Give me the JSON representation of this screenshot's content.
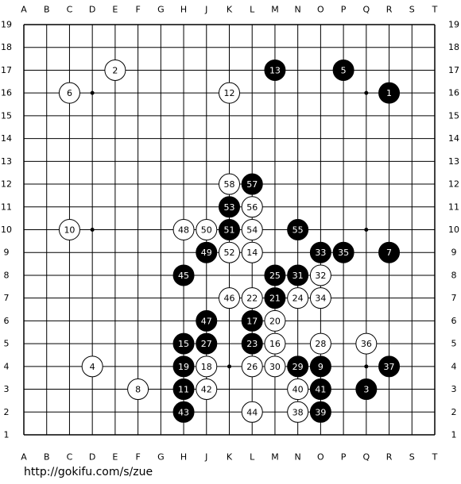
{
  "board": {
    "columns": [
      "A",
      "B",
      "C",
      "D",
      "E",
      "F",
      "G",
      "H",
      "J",
      "K",
      "L",
      "M",
      "N",
      "O",
      "P",
      "Q",
      "R",
      "S",
      "T"
    ],
    "rows": [
      19,
      18,
      17,
      16,
      15,
      14,
      13,
      12,
      11,
      10,
      9,
      8,
      7,
      6,
      5,
      4,
      3,
      2,
      1
    ],
    "stones": [
      {
        "move": 1,
        "color": "black",
        "point": "R16"
      },
      {
        "move": 2,
        "color": "white",
        "point": "E17"
      },
      {
        "move": 3,
        "color": "black",
        "point": "Q3"
      },
      {
        "move": 4,
        "color": "white",
        "point": "D4"
      },
      {
        "move": 5,
        "color": "black",
        "point": "P17"
      },
      {
        "move": 6,
        "color": "white",
        "point": "C16"
      },
      {
        "move": 7,
        "color": "black",
        "point": "R9"
      },
      {
        "move": 8,
        "color": "white",
        "point": "F3"
      },
      {
        "move": 9,
        "color": "black",
        "point": "O4"
      },
      {
        "move": 10,
        "color": "white",
        "point": "C10"
      },
      {
        "move": 11,
        "color": "black",
        "point": "H3"
      },
      {
        "move": 12,
        "color": "white",
        "point": "K16"
      },
      {
        "move": 13,
        "color": "black",
        "point": "M17"
      },
      {
        "move": 14,
        "color": "white",
        "point": "L9"
      },
      {
        "move": 15,
        "color": "black",
        "point": "H5"
      },
      {
        "move": 16,
        "color": "white",
        "point": "M5"
      },
      {
        "move": 17,
        "color": "black",
        "point": "L6"
      },
      {
        "move": 18,
        "color": "white",
        "point": "J4"
      },
      {
        "move": 19,
        "color": "black",
        "point": "H4"
      },
      {
        "move": 20,
        "color": "white",
        "point": "M6"
      },
      {
        "move": 21,
        "color": "black",
        "point": "M7"
      },
      {
        "move": 22,
        "color": "white",
        "point": "L7"
      },
      {
        "move": 23,
        "color": "black",
        "point": "L5"
      },
      {
        "move": 24,
        "color": "white",
        "point": "N7"
      },
      {
        "move": 25,
        "color": "black",
        "point": "M8"
      },
      {
        "move": 26,
        "color": "white",
        "point": "L4"
      },
      {
        "move": 27,
        "color": "black",
        "point": "J5"
      },
      {
        "move": 28,
        "color": "white",
        "point": "O5"
      },
      {
        "move": 29,
        "color": "black",
        "point": "N4"
      },
      {
        "move": 30,
        "color": "white",
        "point": "M4"
      },
      {
        "move": 31,
        "color": "black",
        "point": "N8"
      },
      {
        "move": 32,
        "color": "white",
        "point": "O8"
      },
      {
        "move": 33,
        "color": "black",
        "point": "O9"
      },
      {
        "move": 34,
        "color": "white",
        "point": "O7"
      },
      {
        "move": 35,
        "color": "black",
        "point": "P9"
      },
      {
        "move": 36,
        "color": "white",
        "point": "Q5"
      },
      {
        "move": 37,
        "color": "black",
        "point": "R4"
      },
      {
        "move": 38,
        "color": "white",
        "point": "N2"
      },
      {
        "move": 39,
        "color": "black",
        "point": "O2"
      },
      {
        "move": 40,
        "color": "white",
        "point": "N3"
      },
      {
        "move": 41,
        "color": "black",
        "point": "O3"
      },
      {
        "move": 42,
        "color": "white",
        "point": "J3"
      },
      {
        "move": 43,
        "color": "black",
        "point": "H2"
      },
      {
        "move": 44,
        "color": "white",
        "point": "L2"
      },
      {
        "move": 45,
        "color": "black",
        "point": "H8"
      },
      {
        "move": 46,
        "color": "white",
        "point": "K7"
      },
      {
        "move": 47,
        "color": "black",
        "point": "J6"
      },
      {
        "move": 48,
        "color": "white",
        "point": "H10"
      },
      {
        "move": 49,
        "color": "black",
        "point": "J9"
      },
      {
        "move": 50,
        "color": "white",
        "point": "J10"
      },
      {
        "move": 51,
        "color": "black",
        "point": "K10"
      },
      {
        "move": 52,
        "color": "white",
        "point": "K9"
      },
      {
        "move": 53,
        "color": "black",
        "point": "K11"
      },
      {
        "move": 54,
        "color": "white",
        "point": "L10"
      },
      {
        "move": 55,
        "color": "black",
        "point": "N10"
      },
      {
        "move": 56,
        "color": "white",
        "point": "L11"
      },
      {
        "move": 57,
        "color": "black",
        "point": "L12"
      },
      {
        "move": 58,
        "color": "white",
        "point": "K12"
      }
    ]
  },
  "footer": {
    "url": "http://gokifu.com/s/zue"
  }
}
